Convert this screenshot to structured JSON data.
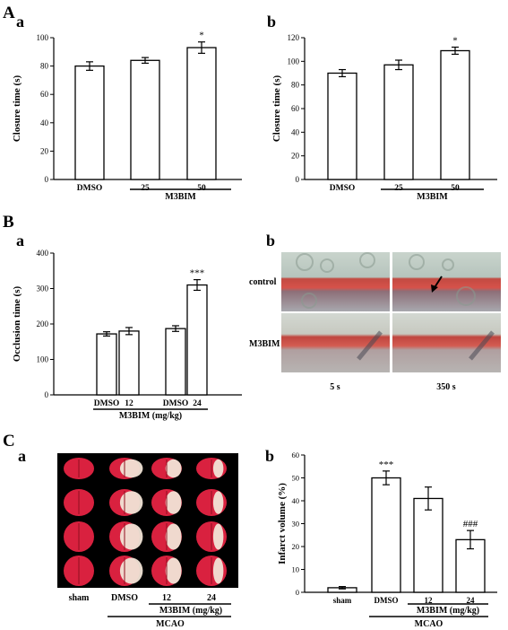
{
  "panel_labels": {
    "A": "A",
    "Aa": "a",
    "Ab": "b",
    "B": "B",
    "Ba": "a",
    "Bb": "b",
    "C": "C",
    "Ca": "a",
    "Cb": "b"
  },
  "colors": {
    "bar_fill": "#ffffff",
    "ink": "#000000"
  },
  "chart_data": [
    {
      "id": "A-a",
      "type": "bar",
      "categories": [
        "DMSO",
        "25",
        "50"
      ],
      "values": [
        80,
        84,
        93
      ],
      "errors": [
        3,
        2,
        4
      ],
      "annotations": [
        "",
        "",
        "*"
      ],
      "ylabel": "Closure time (s)",
      "ylim": [
        0,
        100
      ],
      "yticks": [
        0,
        20,
        40,
        60,
        80,
        100
      ],
      "group_label": "M3BIM",
      "grid": false
    },
    {
      "id": "A-b",
      "type": "bar",
      "categories": [
        "DMSO",
        "25",
        "50"
      ],
      "values": [
        90,
        97,
        109
      ],
      "errors": [
        3,
        4,
        3
      ],
      "annotations": [
        "",
        "",
        "*"
      ],
      "ylabel": "Closure time (s)",
      "ylim": [
        0,
        120
      ],
      "yticks": [
        0,
        20,
        40,
        60,
        80,
        100,
        120
      ],
      "group_label": "M3BIM",
      "grid": false
    },
    {
      "id": "B-a",
      "type": "bar",
      "categories": [
        "DMSO",
        "12",
        "DMSO",
        "24"
      ],
      "values": [
        172,
        180,
        187,
        310
      ],
      "errors": [
        6,
        10,
        8,
        15
      ],
      "annotations": [
        "",
        "",
        "",
        "***"
      ],
      "ylabel": "Occlusion time (s)",
      "ylim": [
        0,
        400
      ],
      "yticks": [
        0,
        100,
        200,
        300,
        400
      ],
      "xlabel": "M3BIM (mg/kg)",
      "grid": false
    },
    {
      "id": "C-b",
      "type": "bar",
      "categories": [
        "sham",
        "DMSO",
        "12",
        "24"
      ],
      "values": [
        2,
        50,
        41,
        23
      ],
      "errors": [
        0.5,
        3,
        5,
        4
      ],
      "annotations": [
        "",
        "***",
        "",
        "###"
      ],
      "ylabel": "Infarct volume (%)",
      "ylim": [
        0,
        60
      ],
      "yticks": [
        0,
        10,
        20,
        30,
        40,
        50,
        60
      ],
      "group_label": "M3BIM (mg/kg)",
      "xlabel": "MCAO",
      "grid": false
    }
  ],
  "micrograph": {
    "row_labels": [
      "control",
      "M3BIM"
    ],
    "col_labels": [
      "5 s",
      "350 s"
    ]
  },
  "brain_slices": {
    "col_labels": [
      "sham",
      "DMSO",
      "12",
      "24"
    ],
    "group_label": "M3BIM (mg/kg)",
    "xlabel": "MCAO"
  }
}
